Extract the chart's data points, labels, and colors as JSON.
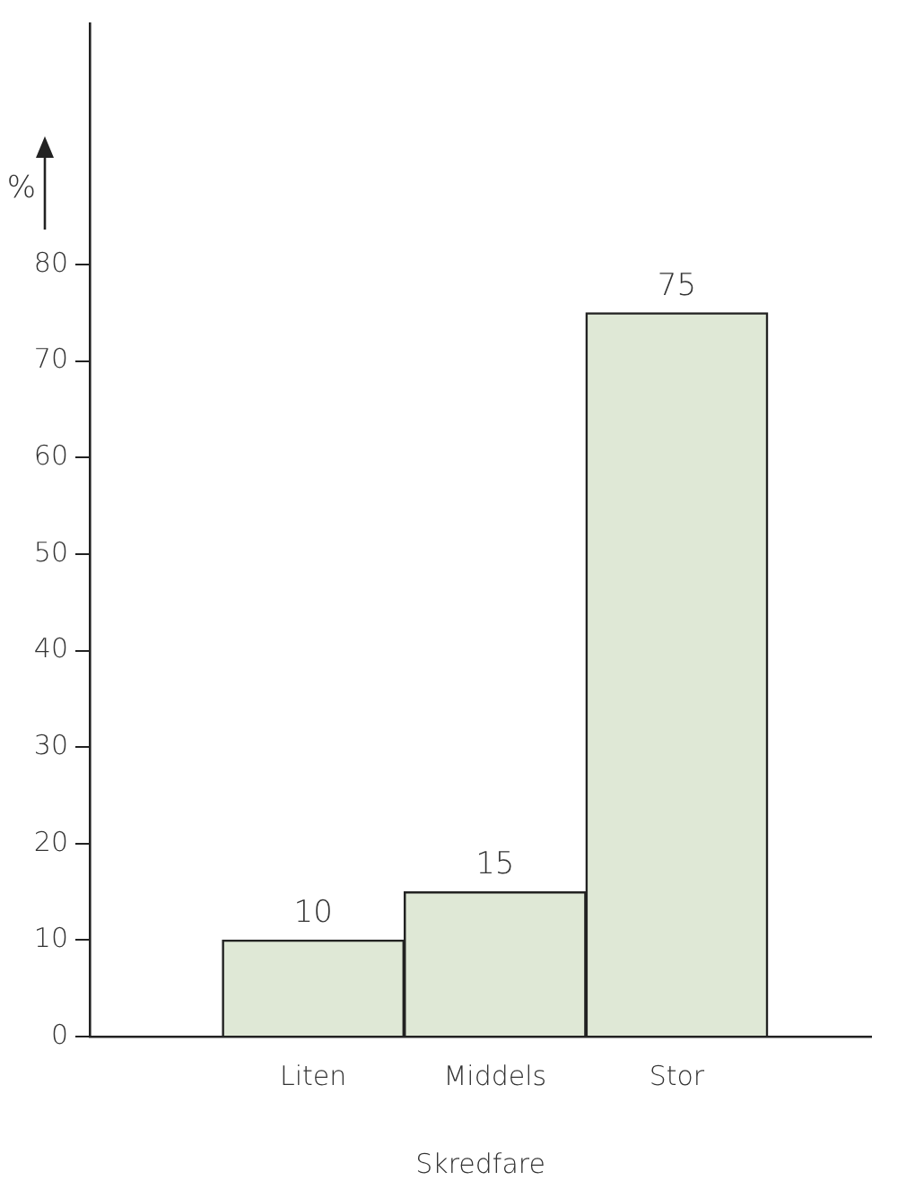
{
  "chart_data": {
    "type": "bar",
    "xlabel": "Skredfare",
    "ylabel": "%",
    "categories": [
      "Liten",
      "Middels",
      "Stor"
    ],
    "values": [
      10,
      15,
      75
    ],
    "color": "#dfe8d6",
    "ylim": [
      0,
      105
    ],
    "yticks": [
      0,
      10,
      20,
      30,
      40,
      50,
      60,
      70,
      80
    ],
    "data_labels": true,
    "grid": false,
    "legend": false
  }
}
